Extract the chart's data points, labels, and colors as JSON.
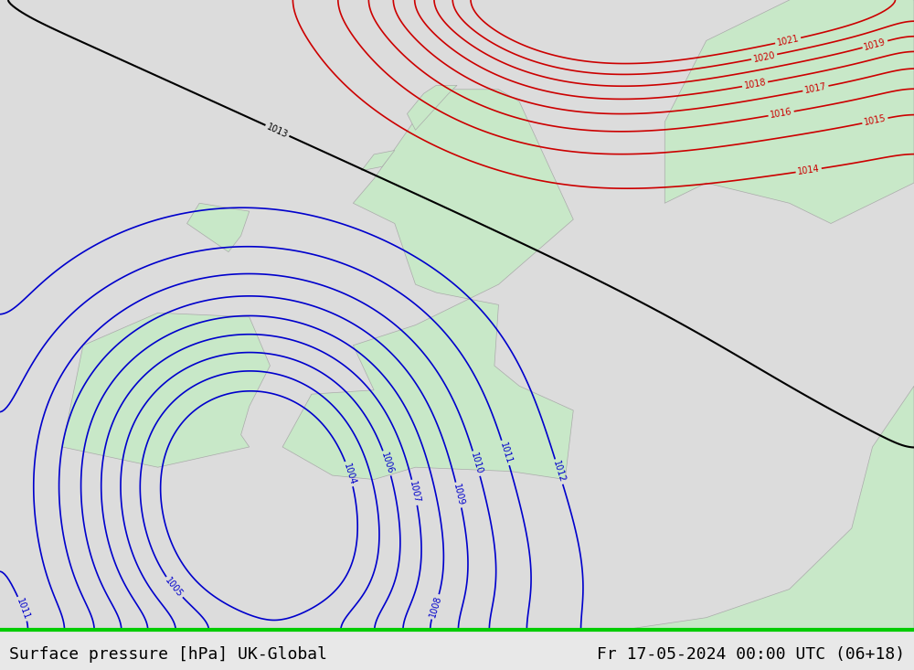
{
  "title_left": "Surface pressure [hPa] UK-Global",
  "title_right": "Fr 17-05-2024 00:00 UTC (06+18)",
  "bg_color": "#e8e8e8",
  "land_color": "#c8e8c8",
  "sea_color": "#dcdcdc",
  "border_color": "#aaaaaa",
  "contour_colors": {
    "below_1013": "#0000cc",
    "at_1013": "#000000",
    "above_1013": "#cc0000"
  },
  "pressure_min": 1004,
  "pressure_max": 1022,
  "pressure_step": 1,
  "figsize": [
    10.0,
    7.33
  ],
  "dpi": 100
}
